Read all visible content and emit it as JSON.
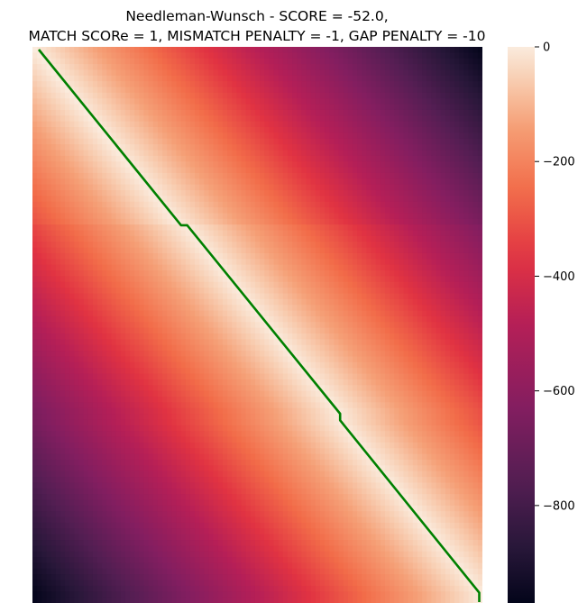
{
  "chart_data": {
    "type": "heatmap",
    "title_lines": [
      "Needleman-Wunsch - SCORE = -52.0,",
      "MATCH SCORe = 1, MISMATCH PENALTY = -1, GAP PENALTY = -10"
    ],
    "xlabel": "",
    "ylabel": "",
    "colormap": "rocket",
    "value_range": [
      -970,
      0
    ],
    "colorbar": {
      "ticks": [
        {
          "value": 0,
          "label": "0"
        },
        {
          "value": -200,
          "label": "−200"
        },
        {
          "value": -400,
          "label": "−400"
        },
        {
          "value": -600,
          "label": "−600"
        },
        {
          "value": -800,
          "label": "−800"
        }
      ]
    },
    "gap_penalty": -10,
    "alignment_path": {
      "color": "#008000",
      "points": [
        [
          0,
          0
        ],
        [
          0.322,
          0.318
        ],
        [
          0.336,
          0.318
        ],
        [
          0.682,
          0.659
        ],
        [
          0.682,
          0.671
        ],
        [
          0.997,
          0.983
        ],
        [
          0.997,
          1.0
        ]
      ]
    },
    "grid": false,
    "legend": "colorbar-right"
  }
}
